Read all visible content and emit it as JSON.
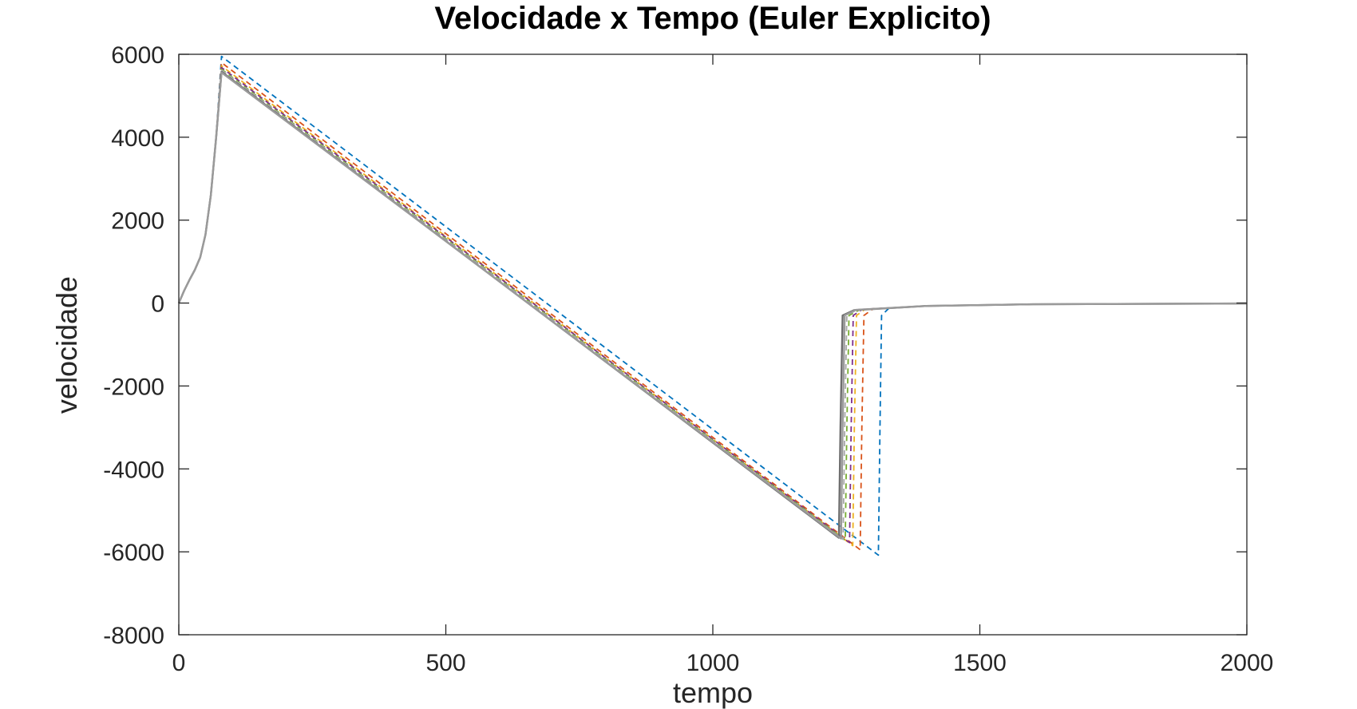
{
  "chart_data": {
    "type": "line",
    "title": "Velocidade x Tempo (Euler Explicito)",
    "xlabel": "tempo",
    "ylabel": "velocidade",
    "xlim": [
      0,
      2000
    ],
    "ylim": [
      -8000,
      6000
    ],
    "xticks": [
      0,
      500,
      1000,
      1500,
      2000
    ],
    "yticks": [
      -8000,
      -6000,
      -4000,
      -2000,
      0,
      2000,
      4000,
      6000
    ],
    "xtick_labels": [
      "0",
      "500",
      "1000",
      "1500",
      "2000"
    ],
    "ytick_labels": [
      "-8000",
      "-6000",
      "-4000",
      "-2000",
      "0",
      "2000",
      "4000",
      "6000"
    ],
    "grid": false,
    "series": [
      {
        "color": "#0072BD",
        "style": "dashed",
        "x": [
          0,
          10,
          20,
          30,
          40,
          50,
          60,
          70,
          80,
          1310,
          1313,
          1316,
          1330,
          1400,
          1600,
          2000
        ],
        "y": [
          0,
          300,
          560,
          800,
          1100,
          1650,
          2600,
          4000,
          5950,
          -6080,
          -3000,
          -300,
          -120,
          -70,
          -30,
          -10
        ]
      },
      {
        "color": "#D95319",
        "style": "dashed",
        "x": [
          0,
          10,
          20,
          30,
          40,
          50,
          60,
          70,
          80,
          1276,
          1279,
          1283,
          1300,
          1400,
          1600,
          2000
        ],
        "y": [
          0,
          300,
          560,
          800,
          1100,
          1650,
          2600,
          4000,
          5800,
          -5950,
          -3000,
          -300,
          -140,
          -70,
          -30,
          -10
        ]
      },
      {
        "color": "#EDB120",
        "style": "dashed",
        "x": [
          0,
          10,
          20,
          30,
          40,
          50,
          60,
          70,
          80,
          1262,
          1265,
          1269,
          1285,
          1400,
          1600,
          2000
        ],
        "y": [
          0,
          300,
          560,
          800,
          1100,
          1650,
          2600,
          4000,
          5720,
          -5850,
          -3000,
          -300,
          -150,
          -70,
          -30,
          -10
        ]
      },
      {
        "color": "#7E2F8E",
        "style": "dashed",
        "x": [
          0,
          10,
          20,
          30,
          40,
          50,
          60,
          70,
          80,
          1256,
          1259,
          1263,
          1280,
          1400,
          1600,
          2000
        ],
        "y": [
          0,
          300,
          560,
          800,
          1100,
          1650,
          2600,
          4000,
          5680,
          -5780,
          -3000,
          -300,
          -150,
          -70,
          -30,
          -10
        ]
      },
      {
        "color": "#77AC30",
        "style": "dashed",
        "x": [
          0,
          10,
          20,
          30,
          40,
          50,
          60,
          70,
          80,
          1248,
          1251,
          1255,
          1275,
          1400,
          1600,
          2000
        ],
        "y": [
          0,
          300,
          560,
          800,
          1100,
          1650,
          2600,
          4000,
          5640,
          -5720,
          -3000,
          -300,
          -160,
          -70,
          -30,
          -10
        ]
      },
      {
        "color": "#A8A8A8",
        "style": "dashed",
        "x": [
          0,
          10,
          20,
          30,
          40,
          50,
          60,
          70,
          80,
          1244,
          1247,
          1251,
          1270,
          1400,
          1600,
          2000
        ],
        "y": [
          0,
          300,
          560,
          800,
          1100,
          1650,
          2600,
          4000,
          5620,
          -5700,
          -3000,
          -300,
          -160,
          -70,
          -30,
          -10
        ]
      },
      {
        "color": "#6E6E6E",
        "style": "solid",
        "x": [
          0,
          10,
          20,
          30,
          40,
          50,
          60,
          70,
          80,
          1236,
          1239,
          1243,
          1265,
          1400,
          1600,
          2000
        ],
        "y": [
          0,
          300,
          560,
          800,
          1100,
          1650,
          2600,
          4000,
          5580,
          -5660,
          -3000,
          -300,
          -170,
          -70,
          -30,
          -10
        ]
      },
      {
        "color": "#9A9A9A",
        "style": "solid",
        "x": [
          0,
          10,
          20,
          30,
          40,
          50,
          60,
          70,
          80,
          1240,
          1243,
          1247,
          1268,
          1400,
          1600,
          2000
        ],
        "y": [
          0,
          300,
          560,
          800,
          1100,
          1650,
          2600,
          4000,
          5560,
          -5680,
          -3000,
          -300,
          -165,
          -70,
          -30,
          -10
        ]
      }
    ]
  }
}
